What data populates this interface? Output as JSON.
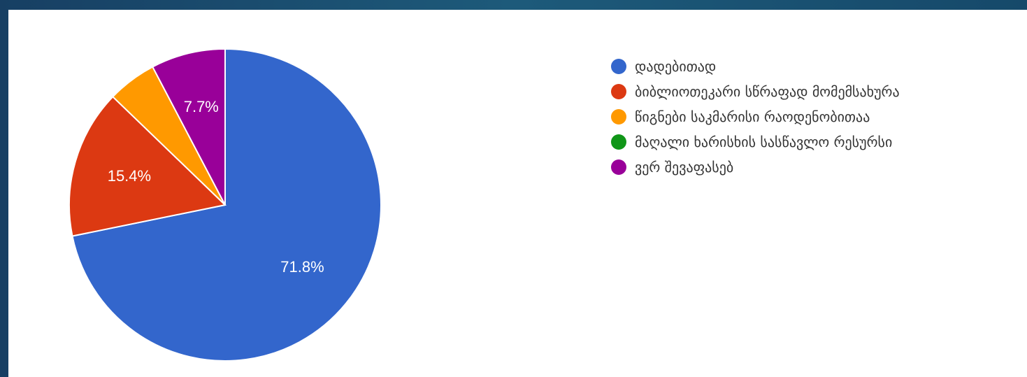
{
  "chart_data": {
    "type": "pie",
    "title": "",
    "categories": [
      "დადებითად",
      "ბიბლიოთეკარი სწრაფად მომემსახურა",
      "წიგნები საკმარისი რაოდენობითაა",
      "მაღალი ხარისხის სასწავლო რესურსი",
      "ვერ შევაფასებ"
    ],
    "values": [
      71.8,
      15.4,
      5.1,
      0,
      7.7
    ],
    "value_labels": [
      "71.8%",
      "15.4%",
      "",
      "",
      "7.7%"
    ],
    "colors": [
      "#3366cc",
      "#dc3912",
      "#ff9900",
      "#109618",
      "#990099"
    ],
    "legend_position": "right"
  }
}
